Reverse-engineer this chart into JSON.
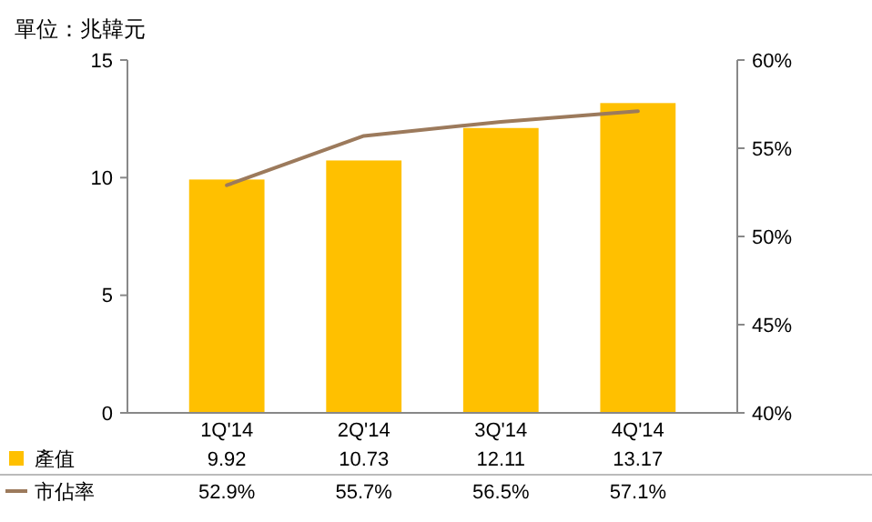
{
  "chart_data": {
    "type": "bar",
    "title": "單位：兆韓元",
    "categories": [
      "1Q'14",
      "2Q'14",
      "3Q'14",
      "4Q'14"
    ],
    "series": [
      {
        "name": "產值",
        "color": "#ffc000",
        "values": [
          9.92,
          10.73,
          12.11,
          13.17
        ],
        "value_labels": [
          "9.92",
          "10.73",
          "12.11",
          "13.17"
        ]
      },
      {
        "name": "市佔率",
        "type": "line",
        "axis": "y2",
        "color": "#9c7a5c",
        "values": [
          52.9,
          55.7,
          56.5,
          57.1
        ],
        "value_labels": [
          "52.9%",
          "55.7%",
          "56.5%",
          "57.1%"
        ]
      }
    ],
    "ylim": [
      0,
      15
    ],
    "yticks": [
      0,
      5,
      10,
      15
    ],
    "y2lim": [
      40,
      60
    ],
    "y2ticks": [
      {
        "value": 40,
        "label": "40%"
      },
      {
        "value": 45,
        "label": "45%"
      },
      {
        "value": 50,
        "label": "50%"
      },
      {
        "value": 55,
        "label": "55%"
      },
      {
        "value": 60,
        "label": "60%"
      }
    ],
    "legend": "bottom",
    "marker": "none",
    "line_style": "solid",
    "grid": false
  }
}
